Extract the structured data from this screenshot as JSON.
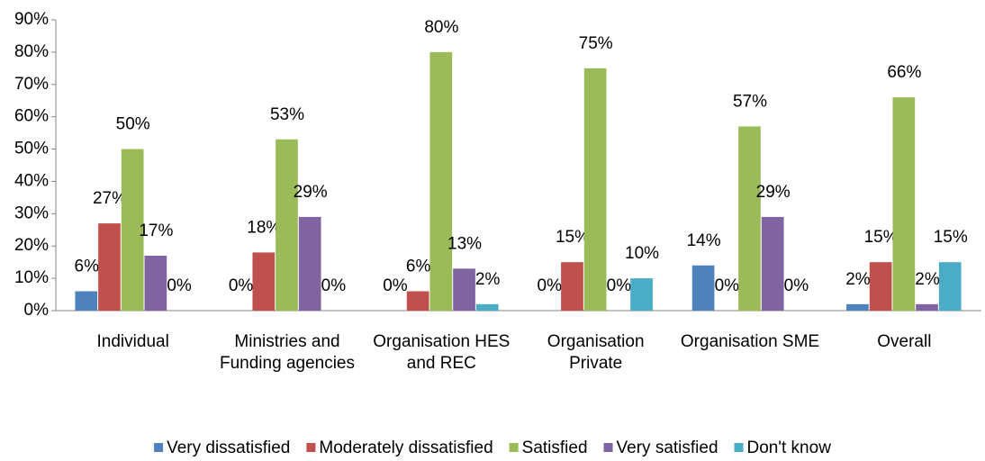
{
  "chart_data": {
    "type": "bar",
    "categories": [
      "Individual",
      "Ministries and Funding agencies",
      "Organisation HES and REC",
      "Organisation Private",
      "Organisation SME",
      "Overall"
    ],
    "series": [
      {
        "name": "Very dissatisfied",
        "color": "#4f81bd",
        "values": [
          6,
          0,
          0,
          0,
          14,
          2
        ],
        "value_labels": [
          "6%",
          "0%",
          "0%",
          "0%",
          "14%",
          "2%"
        ]
      },
      {
        "name": "Moderately dissatisfied",
        "color": "#c0504d",
        "values": [
          27,
          18,
          6,
          15,
          0,
          15
        ],
        "value_labels": [
          "27%",
          "18%",
          "6%",
          "15%",
          "0%",
          "15%"
        ]
      },
      {
        "name": "Satisfied",
        "color": "#9bbb59",
        "values": [
          50,
          53,
          80,
          75,
          57,
          66
        ],
        "value_labels": [
          "50%",
          "53%",
          "80%",
          "75%",
          "57%",
          "66%"
        ]
      },
      {
        "name": "Very satisfied",
        "color": "#8064a2",
        "values": [
          17,
          29,
          13,
          0,
          29,
          2
        ],
        "value_labels": [
          "17%",
          "29%",
          "13%",
          "0%",
          "29%",
          "2%"
        ]
      },
      {
        "name": "Don't know",
        "color": "#4bacc6",
        "values": [
          0,
          0,
          2,
          10,
          0,
          15
        ],
        "value_labels": [
          "0%",
          "0%",
          "2%",
          "10%",
          "0%",
          "15%"
        ]
      }
    ],
    "ylim": [
      0,
      90
    ],
    "yticks": [
      {
        "value": 0,
        "label": "0%"
      },
      {
        "value": 10,
        "label": "10%"
      },
      {
        "value": 20,
        "label": "20%"
      },
      {
        "value": 30,
        "label": "30%"
      },
      {
        "value": 40,
        "label": "40%"
      },
      {
        "value": 50,
        "label": "50%"
      },
      {
        "value": 60,
        "label": "60%"
      },
      {
        "value": 70,
        "label": "70%"
      },
      {
        "value": 80,
        "label": "80%"
      },
      {
        "value": 90,
        "label": "90%"
      }
    ],
    "legend": "bottom"
  }
}
